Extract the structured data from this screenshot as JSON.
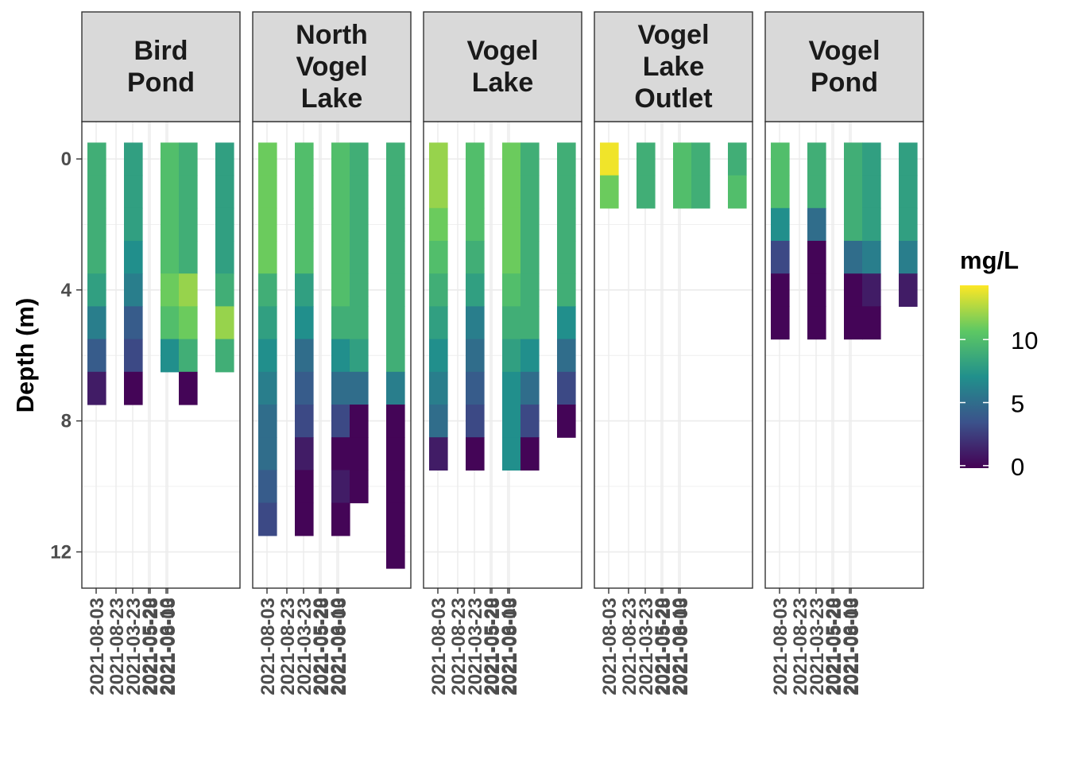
{
  "chart_data": {
    "type": "heatmap",
    "ylabel": "Depth (m)",
    "xlabel": "",
    "y_ticks": [
      0,
      4,
      8,
      12
    ],
    "ylim": [
      -0.6,
      13
    ],
    "y_reversed": true,
    "x_tick_labels": [
      "2021-08-03",
      "2021-08-23",
      "2021-03-23",
      "2021-05-20",
      "2021-05-28",
      "2021-06-10",
      "2021-08-03"
    ],
    "legend": {
      "title": "mg/L",
      "ticks": [
        0,
        5,
        10
      ],
      "range": [
        -0.2,
        14.3
      ],
      "colors": [
        "#440154",
        "#3b528b",
        "#21908c",
        "#5dc863",
        "#fde725"
      ],
      "placement": "right"
    },
    "facets": [
      {
        "name": "Bird\nPond",
        "columns": [
          {
            "values": [
              9,
              9,
              9,
              9,
              8,
              6,
              4,
              1
            ]
          },
          {
            "values": [
              8,
              8,
              8,
              7,
              6,
              4,
              3,
              0
            ]
          },
          {
            "values": [
              10,
              10,
              10,
              10,
              11,
              10,
              7
            ]
          },
          {
            "values": [
              9,
              9,
              9,
              9,
              12,
              11,
              9,
              0
            ]
          },
          {
            "values": [
              8,
              8,
              8,
              8,
              9,
              12,
              9
            ]
          }
        ]
      },
      {
        "name": "North\nVogel\nLake",
        "columns": [
          {
            "values": [
              11,
              11,
              11,
              11,
              9,
              8,
              7,
              6,
              5,
              5,
              4,
              3
            ]
          },
          {
            "values": [
              10,
              10,
              10,
              10,
              8,
              7,
              5,
              4,
              3,
              1,
              0,
              0
            ]
          },
          {
            "values": [
              10,
              10,
              10,
              10,
              10,
              9,
              7,
              5,
              3,
              0,
              1,
              0
            ]
          },
          {
            "values": [
              9,
              9,
              9,
              9,
              9,
              9,
              8,
              5,
              0,
              0,
              0
            ]
          },
          {
            "values": [
              9,
              9,
              9,
              9,
              9,
              9,
              9,
              6,
              0,
              0,
              0,
              0,
              0
            ]
          }
        ]
      },
      {
        "name": "Vogel\nLake",
        "columns": [
          {
            "values": [
              12,
              12,
              11,
              10,
              9,
              8,
              7,
              6,
              5,
              1
            ]
          },
          {
            "values": [
              10,
              10,
              10,
              9,
              8,
              6,
              5,
              4,
              3,
              0
            ]
          },
          {
            "values": [
              11,
              11,
              11,
              11,
              10,
              9,
              8,
              7,
              7,
              7
            ]
          },
          {
            "values": [
              9,
              9,
              9,
              9,
              9,
              9,
              7,
              5,
              3,
              0
            ]
          },
          {
            "values": [
              9,
              9,
              9,
              9,
              9,
              7,
              5,
              3,
              0
            ]
          }
        ]
      },
      {
        "name": "Vogel\nLake\nOutlet",
        "columns": [
          {
            "values": [
              14,
              11
            ]
          },
          {
            "values": [
              9,
              9
            ]
          },
          {
            "values": [
              10,
              10
            ]
          },
          {
            "values": [
              9,
              9
            ]
          },
          {
            "values": [
              9,
              10
            ]
          }
        ]
      },
      {
        "name": "Vogel\nPond",
        "columns": [
          {
            "values": [
              10,
              10,
              7,
              3,
              0,
              0
            ]
          },
          {
            "values": [
              9,
              9,
              5,
              0,
              0,
              0
            ]
          },
          {
            "values": [
              9,
              9,
              9,
              5,
              0,
              0
            ]
          },
          {
            "values": [
              8,
              8,
              8,
              6,
              1,
              0
            ]
          },
          {
            "values": [
              8,
              8,
              8,
              6,
              1
            ]
          }
        ]
      }
    ]
  }
}
